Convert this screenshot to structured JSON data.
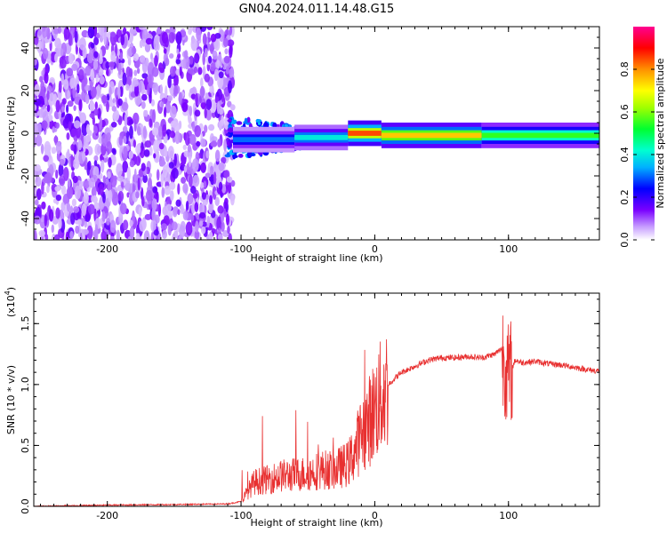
{
  "title": "GN04.2024.011.14.48.G15",
  "chart_data": [
    {
      "type": "heatmap",
      "xlabel": "Height of straight line (km)",
      "ylabel": "Frequency (Hz)",
      "xlim": [
        -255,
        168
      ],
      "ylim": [
        -50,
        50
      ],
      "x_ticks": [
        -200,
        -100,
        0,
        100
      ],
      "y_ticks": [
        -40,
        -20,
        0,
        20,
        40
      ],
      "noise_region_x": [
        -255,
        -106
      ],
      "ridge": {
        "frequency": 0,
        "segments": [
          {
            "x": [
              -106,
              -60
            ],
            "freq_center": -3,
            "amplitude": 0.3
          },
          {
            "x": [
              -60,
              -20
            ],
            "freq_center": -2,
            "amplitude": 0.4
          },
          {
            "x": [
              -20,
              5
            ],
            "freq_center": 0,
            "amplitude": 0.85
          },
          {
            "x": [
              5,
              80
            ],
            "freq_center": -1,
            "amplitude": 0.75
          },
          {
            "x": [
              80,
              168
            ],
            "freq_center": -1,
            "amplitude": 0.55
          }
        ]
      },
      "colorbar": {
        "label": "Normalized spectral amplitude",
        "range": [
          0.0,
          1.0
        ],
        "ticks": [
          "0.0",
          "0.2",
          "0.4",
          "0.6",
          "0.8"
        ]
      }
    },
    {
      "type": "line",
      "xlabel": "Height of straight line (km)",
      "ylabel": "SNR (10 * v/v)",
      "y_scale_label": "(x10",
      "y_scale_exp": "4",
      "y_scale_close": ")",
      "xlim": [
        -255,
        168
      ],
      "ylim": [
        0,
        1.75
      ],
      "x_ticks": [
        -200,
        -100,
        0,
        100
      ],
      "y_ticks": [
        "0.0",
        "0.5",
        "1.0",
        "1.5"
      ],
      "series": [
        {
          "color": "#e83030",
          "x": [
            -255,
            -200,
            -150,
            -110,
            -100,
            -95,
            -90,
            -80,
            -70,
            -60,
            -50,
            -40,
            -30,
            -20,
            -15,
            -10,
            -5,
            0,
            10,
            20,
            30,
            40,
            50,
            60,
            70,
            80,
            90,
            95,
            100,
            105,
            110,
            120,
            130,
            140,
            150,
            160,
            168
          ],
          "y": [
            0.0,
            0.01,
            0.015,
            0.02,
            0.04,
            0.12,
            0.2,
            0.22,
            0.25,
            0.26,
            0.27,
            0.3,
            0.3,
            0.35,
            0.45,
            0.6,
            0.68,
            0.8,
            1.0,
            1.1,
            1.15,
            1.2,
            1.22,
            1.22,
            1.23,
            1.22,
            1.25,
            1.3,
            1.05,
            1.2,
            1.18,
            1.19,
            1.17,
            1.16,
            1.14,
            1.12,
            1.11
          ]
        }
      ],
      "color": "#e83030"
    }
  ]
}
